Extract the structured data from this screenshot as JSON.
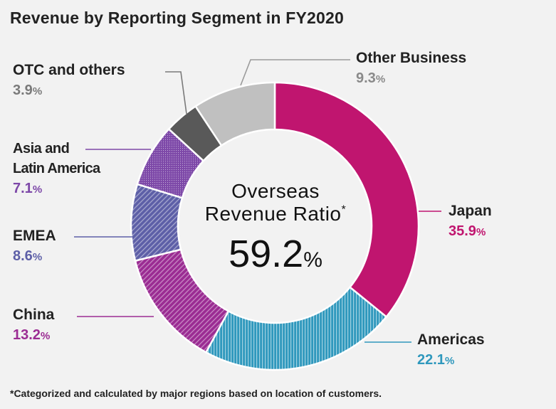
{
  "title": "Revenue by Reporting Segment in FY2020",
  "footnote": "*Categorized and calculated by major regions based on location of customers.",
  "center": {
    "line1": "Overseas",
    "line2": "Revenue Ratio",
    "asterisk": "*",
    "value": "59.2",
    "unit": "%"
  },
  "chart_data": {
    "type": "pie",
    "donut": true,
    "title": "Revenue by Reporting Segment in FY2020",
    "series": [
      {
        "name": "Japan",
        "value": 35.9,
        "label": "35.9",
        "color": "#c0156f",
        "pattern": "solid"
      },
      {
        "name": "Americas",
        "value": 22.1,
        "label": "22.1",
        "color": "#2f98bd",
        "pattern": "vertical-lines"
      },
      {
        "name": "China",
        "value": 13.2,
        "label": "13.2",
        "color": "#9b2c93",
        "pattern": "diagonal-lines"
      },
      {
        "name": "EMEA",
        "value": 8.6,
        "label": "8.6",
        "color": "#5d5fa7",
        "pattern": "diagonal-lines"
      },
      {
        "name": "Asia and Latin America",
        "line1": "Asia and",
        "line2": "Latin America",
        "value": 7.1,
        "label": "7.1",
        "color": "#7d48a8",
        "pattern": "dots"
      },
      {
        "name": "OTC and others",
        "value": 3.9,
        "label": "3.9",
        "color": "#595959",
        "pattern": "solid"
      },
      {
        "name": "Other Business",
        "value": 9.3,
        "label": "9.3",
        "color": "#c0c0c0",
        "pattern": "solid"
      }
    ],
    "unit": "%"
  }
}
